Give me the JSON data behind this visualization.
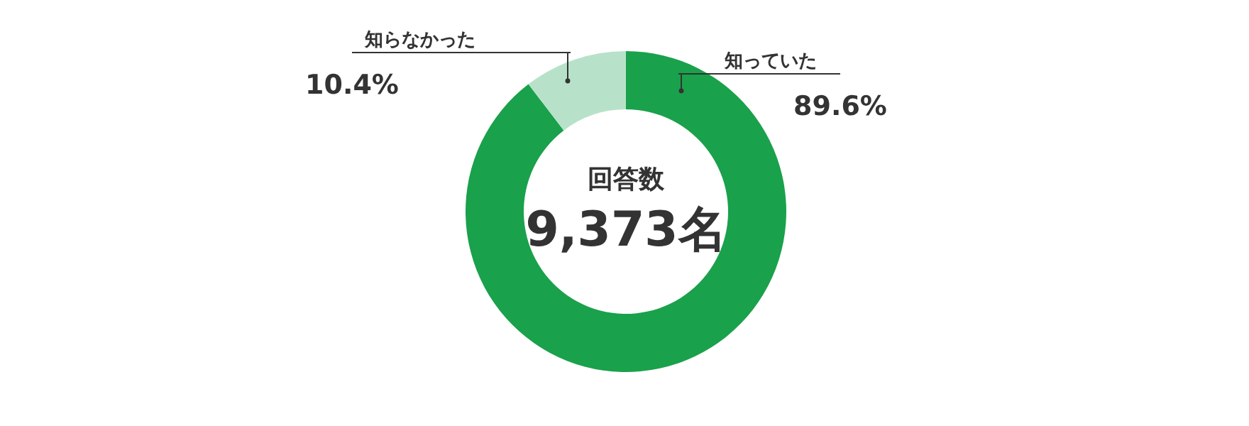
{
  "chart_data": {
    "type": "donut",
    "categories": [
      "知っていた",
      "知らなかった"
    ],
    "values": [
      89.6,
      10.4
    ],
    "colors": [
      "#1aa14b",
      "#b7e2c9"
    ],
    "value_labels": [
      "89.6%",
      "10.4%"
    ],
    "annotations": [
      "回答数",
      "9,373名"
    ]
  }
}
